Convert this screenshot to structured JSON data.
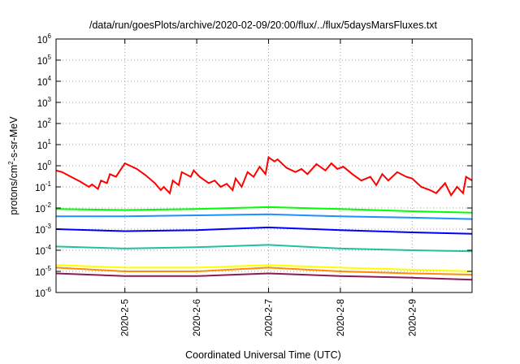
{
  "chart_data": {
    "type": "line",
    "title": "/data/run/goesPlots/archive/2020-02-09/20:00/flux/../flux/5daysMarsFluxes.txt",
    "xlabel": "Coordinated Universal Time (UTC)",
    "ylabel": {
      "base": "protons/cm",
      "sup": "2",
      "rest": "-s-sr-MeV"
    },
    "y_scale": "log",
    "ylim": [
      1e-06,
      1000000.0
    ],
    "y_ticks": [
      {
        "base": "10",
        "exp": "-6",
        "value": 1e-06
      },
      {
        "base": "10",
        "exp": "-5",
        "value": 1e-05
      },
      {
        "base": "10",
        "exp": "-4",
        "value": 0.0001
      },
      {
        "base": "10",
        "exp": "-3",
        "value": 0.001
      },
      {
        "base": "10",
        "exp": "-2",
        "value": 0.01
      },
      {
        "base": "10",
        "exp": "-1",
        "value": 0.1
      },
      {
        "base": "10",
        "exp": "0",
        "value": 1
      },
      {
        "base": "10",
        "exp": "1",
        "value": 10
      },
      {
        "base": "10",
        "exp": "2",
        "value": 100
      },
      {
        "base": "10",
        "exp": "3",
        "value": 1000
      },
      {
        "base": "10",
        "exp": "4",
        "value": 10000
      },
      {
        "base": "10",
        "exp": "5",
        "value": 100000
      },
      {
        "base": "10",
        "exp": "6",
        "value": 1000000
      }
    ],
    "xlim": [
      "2020-02-04T01:00",
      "2020-02-09T20:00"
    ],
    "x_ticks": [
      {
        "label": "2020-2-5",
        "value": "2020-02-05T00:00"
      },
      {
        "label": "2020-2-6",
        "value": "2020-02-06T00:00"
      },
      {
        "label": "2020-2-7",
        "value": "2020-02-07T00:00"
      },
      {
        "label": "2020-2-8",
        "value": "2020-02-08T00:00"
      },
      {
        "label": "2020-2-9",
        "value": "2020-02-09T00:00"
      }
    ],
    "grid": true,
    "series": [
      {
        "color": "#ff0000",
        "x": [
          "2020-02-04T01:00",
          "2020-02-04T03:00",
          "2020-02-04T06:00",
          "2020-02-04T09:00",
          "2020-02-04T12:00",
          "2020-02-04T13:00",
          "2020-02-04T15:00",
          "2020-02-04T16:00",
          "2020-02-04T18:00",
          "2020-02-04T19:00",
          "2020-02-04T21:00",
          "2020-02-05T00:00",
          "2020-02-05T04:00",
          "2020-02-05T07:00",
          "2020-02-05T10:00",
          "2020-02-05T12:00",
          "2020-02-05T13:00",
          "2020-02-05T15:00",
          "2020-02-05T16:00",
          "2020-02-05T18:00",
          "2020-02-05T19:00",
          "2020-02-05T22:00",
          "2020-02-05T23:00",
          "2020-02-06T01:00",
          "2020-02-06T04:00",
          "2020-02-06T06:00",
          "2020-02-06T08:00",
          "2020-02-06T10:00",
          "2020-02-06T12:00",
          "2020-02-06T13:00",
          "2020-02-06T15:00",
          "2020-02-06T17:00",
          "2020-02-06T19:00",
          "2020-02-06T21:00",
          "2020-02-06T23:00",
          "2020-02-07T00:00",
          "2020-02-07T02:00",
          "2020-02-07T03:00",
          "2020-02-07T06:00",
          "2020-02-07T09:00",
          "2020-02-07T11:00",
          "2020-02-07T13:00",
          "2020-02-07T16:00",
          "2020-02-07T19:00",
          "2020-02-07T21:00",
          "2020-02-07T23:00",
          "2020-02-08T01:00",
          "2020-02-08T04:00",
          "2020-02-08T07:00",
          "2020-02-08T10:00",
          "2020-02-08T12:00",
          "2020-02-08T14:00",
          "2020-02-08T16:00",
          "2020-02-08T19:00",
          "2020-02-08T22:00",
          "2020-02-09T00:00",
          "2020-02-09T03:00",
          "2020-02-09T06:00",
          "2020-02-09T08:00",
          "2020-02-09T11:00",
          "2020-02-09T13:00",
          "2020-02-09T15:00",
          "2020-02-09T17:00",
          "2020-02-09T18:00",
          "2020-02-09T20:00"
        ],
        "values": [
          0.6,
          0.5,
          0.3,
          0.18,
          0.1,
          0.13,
          0.08,
          0.2,
          0.15,
          0.4,
          0.3,
          1.3,
          0.7,
          0.35,
          0.15,
          0.07,
          0.1,
          0.05,
          0.2,
          0.12,
          0.5,
          0.3,
          0.6,
          0.3,
          0.15,
          0.2,
          0.1,
          0.14,
          0.07,
          0.25,
          0.1,
          0.5,
          0.3,
          0.9,
          0.4,
          2.5,
          1.6,
          2.0,
          0.8,
          0.5,
          0.7,
          0.4,
          1.2,
          0.6,
          1.3,
          0.7,
          0.9,
          0.4,
          0.2,
          0.3,
          0.12,
          0.4,
          0.2,
          0.5,
          0.3,
          0.25,
          0.1,
          0.07,
          0.05,
          0.15,
          0.04,
          0.1,
          0.05,
          0.3,
          0.2
        ]
      },
      {
        "color": "#00ff00",
        "x": [
          "2020-02-04T01:00",
          "2020-02-05T00:00",
          "2020-02-06T00:00",
          "2020-02-07T00:00",
          "2020-02-08T00:00",
          "2020-02-09T00:00",
          "2020-02-09T20:00"
        ],
        "values": [
          0.009,
          0.008,
          0.009,
          0.011,
          0.009,
          0.007,
          0.006
        ]
      },
      {
        "color": "#1e90ff",
        "x": [
          "2020-02-04T01:00",
          "2020-02-05T00:00",
          "2020-02-06T00:00",
          "2020-02-07T00:00",
          "2020-02-08T00:00",
          "2020-02-09T00:00",
          "2020-02-09T20:00"
        ],
        "values": [
          0.004,
          0.004,
          0.0045,
          0.005,
          0.004,
          0.0035,
          0.003
        ]
      },
      {
        "color": "#0000ff",
        "x": [
          "2020-02-04T01:00",
          "2020-02-05T00:00",
          "2020-02-06T00:00",
          "2020-02-07T00:00",
          "2020-02-08T00:00",
          "2020-02-09T00:00",
          "2020-02-09T20:00"
        ],
        "values": [
          0.001,
          0.0008,
          0.0009,
          0.0012,
          0.0009,
          0.0007,
          0.0006
        ]
      },
      {
        "color": "#20c0a0",
        "x": [
          "2020-02-04T01:00",
          "2020-02-05T00:00",
          "2020-02-06T00:00",
          "2020-02-07T00:00",
          "2020-02-08T00:00",
          "2020-02-09T00:00",
          "2020-02-09T20:00"
        ],
        "values": [
          0.00015,
          0.00012,
          0.00014,
          0.00018,
          0.00012,
          0.0001,
          9e-05
        ]
      },
      {
        "color": "#ffff00",
        "x": [
          "2020-02-04T01:00",
          "2020-02-05T00:00",
          "2020-02-06T00:00",
          "2020-02-07T00:00",
          "2020-02-08T00:00",
          "2020-02-09T00:00",
          "2020-02-09T20:00"
        ],
        "values": [
          2e-05,
          1.5e-05,
          1.5e-05,
          2e-05,
          1.5e-05,
          1.2e-05,
          1e-05
        ]
      },
      {
        "color": "#ff8c00",
        "x": [
          "2020-02-04T01:00",
          "2020-02-05T00:00",
          "2020-02-06T00:00",
          "2020-02-07T00:00",
          "2020-02-08T00:00",
          "2020-02-09T00:00",
          "2020-02-09T20:00"
        ],
        "values": [
          1.5e-05,
          1e-05,
          1e-05,
          1.5e-05,
          1e-05,
          8e-06,
          7e-06
        ]
      },
      {
        "color": "#8b1a5a",
        "x": [
          "2020-02-04T01:00",
          "2020-02-05T00:00",
          "2020-02-06T00:00",
          "2020-02-07T00:00",
          "2020-02-08T00:00",
          "2020-02-09T00:00",
          "2020-02-09T20:00"
        ],
        "values": [
          8e-06,
          6e-06,
          6e-06,
          8e-06,
          6e-06,
          5e-06,
          4e-06
        ]
      }
    ]
  }
}
